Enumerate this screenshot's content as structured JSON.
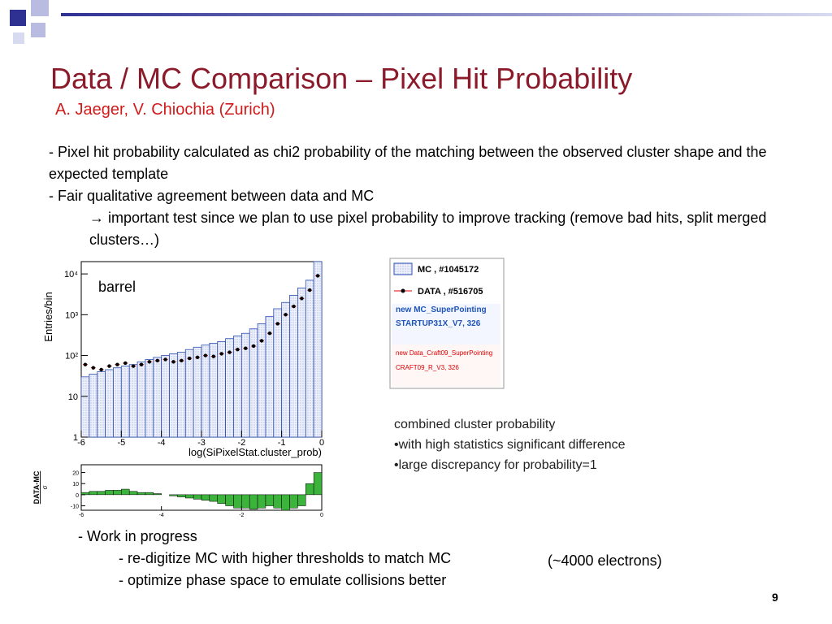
{
  "header": {
    "title": "Data / MC Comparison – Pixel Hit Probability",
    "authors": "A. Jaeger, V. Chiochia (Zurich)"
  },
  "bullets": [
    "- Pixel hit probability calculated as chi2 probability of the matching between the observed cluster shape and the expected template",
    "- Fair qualitative agreement between data and MC",
    "→ important test since we plan to use pixel probability to improve tracking (remove bad hits, split merged clusters…)"
  ],
  "main_plot": {
    "type": "histogram",
    "ylabel": "Entries/bin",
    "xlabel": "log(SiPixelStat.cluster_prob)",
    "annotation": "barrel",
    "log_y": true,
    "bins": [
      -6,
      -5.8,
      -5.6,
      -5.4,
      -5.2,
      -5,
      -4.8,
      -4.6,
      -4.4,
      -4.2,
      -4,
      -3.8,
      -3.6,
      -3.4,
      -3.2,
      -3,
      -2.8,
      -2.6,
      -2.4,
      -2.2,
      -2,
      -1.8,
      -1.6,
      -1.4,
      -1.2,
      -1,
      -0.8,
      -0.6,
      -0.4,
      -0.2,
      0
    ],
    "xlim": [
      -6,
      0
    ],
    "xticks": [
      -6,
      -5,
      -4,
      -3,
      -2,
      -1,
      0
    ],
    "ylim": [
      1,
      20000
    ],
    "yticks": [
      1,
      10,
      {
        "value": 100,
        "label": "10²"
      },
      {
        "value": 1000,
        "label": "10³"
      },
      {
        "value": 10000,
        "label": "10⁴"
      }
    ],
    "series": [
      {
        "name": "MC",
        "color": "#2b4fb0",
        "values": [
          30,
          35,
          40,
          45,
          50,
          55,
          60,
          70,
          80,
          90,
          100,
          110,
          120,
          140,
          160,
          180,
          200,
          220,
          260,
          300,
          350,
          450,
          600,
          900,
          1400,
          2000,
          3000,
          4500,
          7000,
          20000
        ]
      },
      {
        "name": "DATA",
        "color": "#000000",
        "values": [
          60,
          50,
          45,
          55,
          60,
          65,
          55,
          60,
          70,
          75,
          80,
          70,
          75,
          85,
          90,
          100,
          95,
          110,
          120,
          140,
          150,
          170,
          230,
          350,
          600,
          1000,
          1600,
          2500,
          4000,
          9000
        ]
      }
    ]
  },
  "residual_plot": {
    "type": "bar",
    "ylabel": "DATA-MC",
    "ylabel_sub": "σ",
    "color": "#3cb43c",
    "xlim": [
      -6,
      0
    ],
    "xticks": [
      -6,
      -4,
      -2,
      0
    ],
    "ylim": [
      -14,
      27
    ],
    "yticks": [
      -10,
      0,
      10,
      20
    ],
    "values": [
      2,
      3,
      3,
      4,
      4,
      5,
      3,
      2,
      2,
      1,
      0,
      -1,
      -2,
      -3,
      -4,
      -5,
      -6,
      -8,
      -10,
      -12,
      -12,
      -13,
      -12,
      -10,
      -12,
      -14,
      -12,
      -10,
      10,
      20
    ]
  },
  "legend": {
    "entries": [
      "MC , #1045172",
      "DATA , #516705"
    ],
    "mc_config": [
      "new MC_SuperPointing",
      "STARTUP31X_V7, 326"
    ],
    "data_config": [
      "new Data_Craft09_SuperPointing",
      "CRAFT09_R_V3, 326"
    ]
  },
  "notes": [
    "combined cluster probability",
    "•with high statistics significant difference",
    "•large discrepancy for probability=1"
  ],
  "todo": {
    "head": "- Work in progress",
    "items": [
      "- re-digitize MC with higher thresholds to match MC",
      "- optimize phase space to emulate collisions better"
    ],
    "aside": "(~4000 electrons)"
  },
  "footer": {
    "page": "9"
  }
}
